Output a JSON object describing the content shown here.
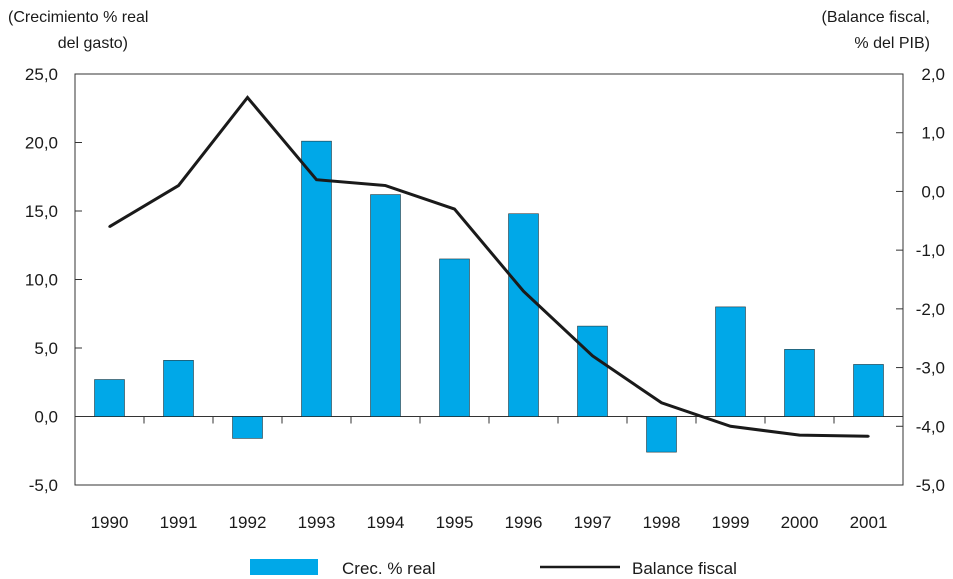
{
  "chart_data": {
    "type": "bar",
    "categories": [
      "1990",
      "1991",
      "1992",
      "1993",
      "1994",
      "1995",
      "1996",
      "1997",
      "1998",
      "1999",
      "2000",
      "2001"
    ],
    "series": [
      {
        "name": "Crec. % real",
        "type": "bar",
        "axis": "left",
        "color": "#00a8e8",
        "values": [
          2.7,
          4.1,
          -1.6,
          20.1,
          16.2,
          11.5,
          14.8,
          6.6,
          -2.6,
          8.0,
          4.9,
          3.8
        ]
      },
      {
        "name": "Balance fiscal",
        "type": "line",
        "axis": "right",
        "color": "#1a1a1a",
        "values": [
          -0.6,
          0.1,
          1.6,
          0.2,
          0.1,
          -0.3,
          -1.7,
          -2.8,
          -3.6,
          -4.0,
          -4.15,
          -4.17
        ]
      }
    ],
    "left_axis": {
      "title_lines": [
        "(Crecimiento % real",
        "del gasto)"
      ],
      "ylim": [
        -5,
        25
      ],
      "ticks": [
        "25,0",
        "20,0",
        "15,0",
        "10,0",
        "5,0",
        "0,0",
        "-5,0"
      ],
      "tick_values": [
        25,
        20,
        15,
        10,
        5,
        0,
        -5
      ]
    },
    "right_axis": {
      "title_lines": [
        "(Balance fiscal,",
        "% del PIB)"
      ],
      "ylim": [
        -5,
        2
      ],
      "ticks": [
        "2,0",
        "1,0",
        "0,0",
        "-1,0",
        "-2,0",
        "-3,0",
        "-4,0",
        "-5,0"
      ],
      "tick_values": [
        2,
        1,
        0,
        -1,
        -2,
        -3,
        -4,
        -5
      ]
    },
    "legend": {
      "position": "bottom",
      "bar_label": "Crec. % real",
      "line_label": "Balance fiscal"
    },
    "grid": false
  }
}
